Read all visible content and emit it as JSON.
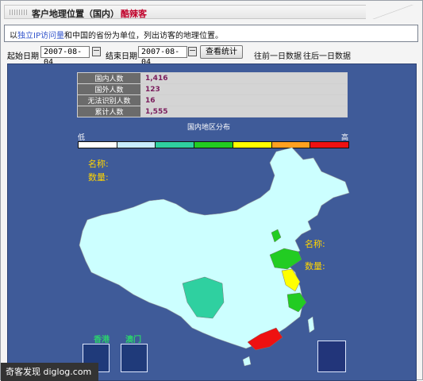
{
  "header": {
    "title": "客户地理位置（国内）",
    "user": "酷辣客"
  },
  "info": {
    "prefix": "以",
    "link": "独立IP访问量",
    "suffix": "和中国的省份为单位，列出访客的地理位置。"
  },
  "filter": {
    "start_label": "起始日期",
    "start_value": "2007-08-04",
    "end_label": "结束日期",
    "end_value": "2007-08-04",
    "query_button": "查看统计",
    "prev_day": "往前一日数据",
    "next_day": "往后一日数据"
  },
  "stats": [
    {
      "label": "国内人数",
      "value": "1,416"
    },
    {
      "label": "国外人数",
      "value": "123"
    },
    {
      "label": "无法识别人数",
      "value": "16"
    },
    {
      "label": "累计人数",
      "value": "1,555"
    }
  ],
  "map": {
    "title": "国内地区分布",
    "low": "低",
    "high": "高",
    "legend_colors": [
      "#ffffff",
      "#c9eeff",
      "#2fd0a0",
      "#22cc22",
      "#ffff00",
      "#ffa020",
      "#ee1111"
    ],
    "name_label": "名称:",
    "count_label": "数量:",
    "hk_label": "香港",
    "macau_label": "澳门",
    "land_color": "#ccffff",
    "province_colors": {
      "shandong": "#22cc22",
      "beijing": "#22cc22",
      "jiangsu": "#ffff00",
      "zhejiang": "#22cc22",
      "sichuan": "#2fd0a0",
      "guangdong": "#ee1111"
    }
  },
  "watermark": "奇客发现 diglog.com"
}
